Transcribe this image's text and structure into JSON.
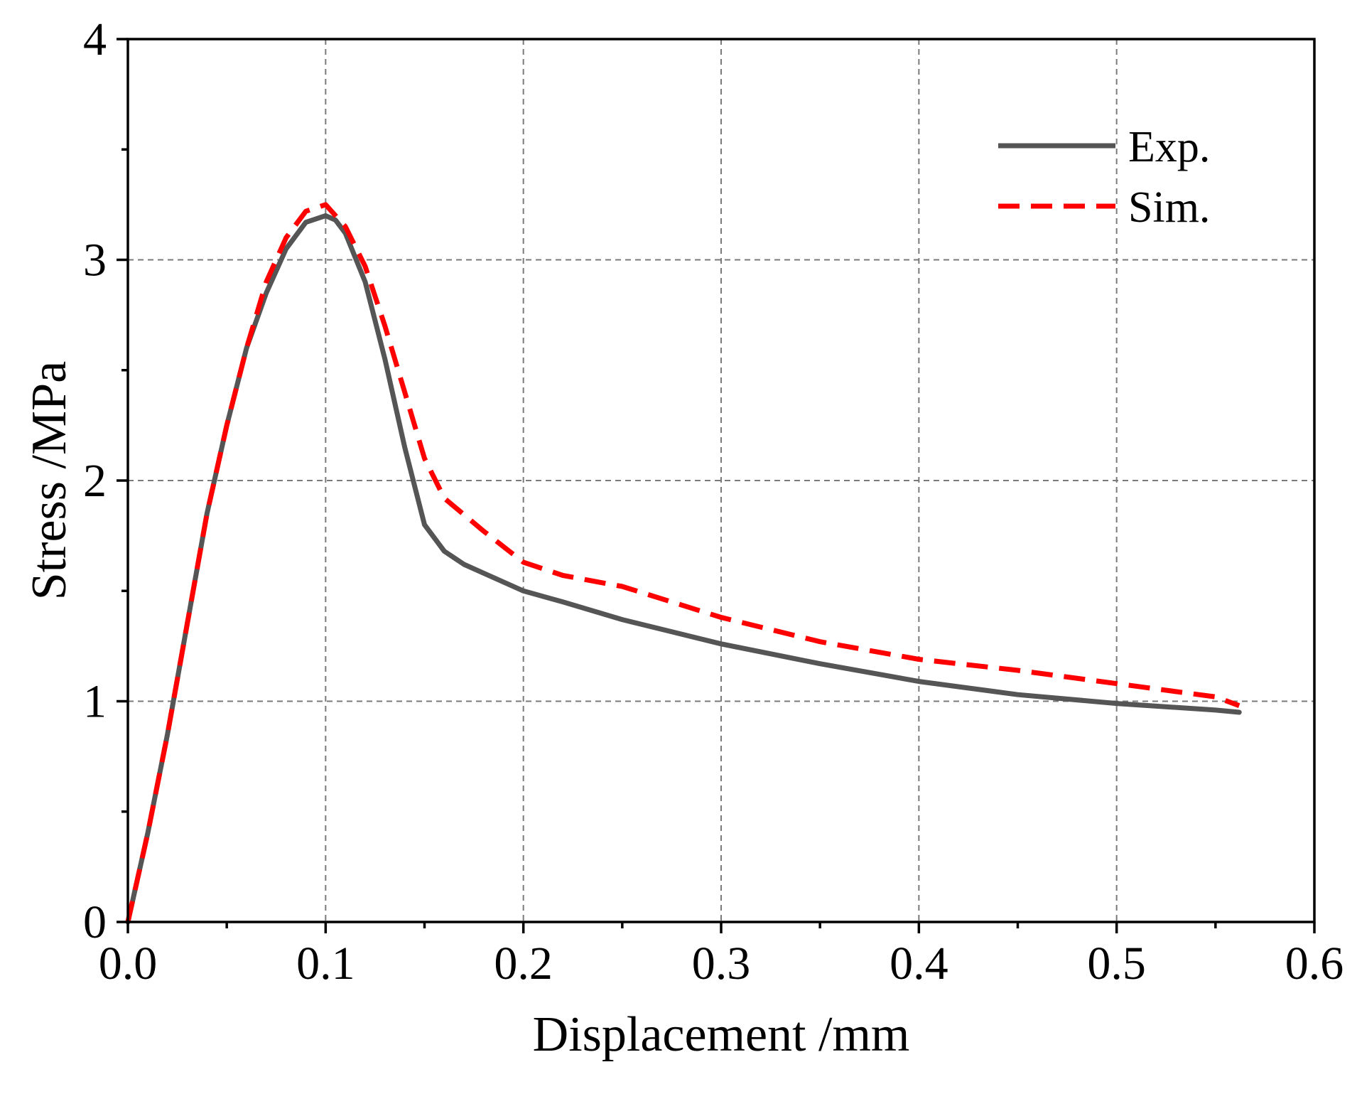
{
  "chart_data": {
    "type": "line",
    "title": "",
    "xlabel": "Displacement /mm",
    "ylabel": "Stress /MPa",
    "xlim": [
      0.0,
      0.6
    ],
    "ylim": [
      0,
      4
    ],
    "x_ticks": [
      "0.0",
      "0.1",
      "0.2",
      "0.3",
      "0.4",
      "0.5",
      "0.6"
    ],
    "y_ticks": [
      "0",
      "1",
      "2",
      "3",
      "4"
    ],
    "x_tick_values": [
      0.0,
      0.1,
      0.2,
      0.3,
      0.4,
      0.5,
      0.6
    ],
    "y_tick_values": [
      0,
      1,
      2,
      3,
      4
    ],
    "x_minor_step": 0.05,
    "y_minor_step": 0.5,
    "grid": true,
    "legend_position": "top-right",
    "series": [
      {
        "name": "Exp.",
        "style": "solid",
        "color": "#555555",
        "x": [
          0,
          0.01,
          0.02,
          0.03,
          0.04,
          0.05,
          0.06,
          0.07,
          0.08,
          0.09,
          0.1,
          0.105,
          0.11,
          0.12,
          0.13,
          0.14,
          0.15,
          0.16,
          0.17,
          0.18,
          0.2,
          0.22,
          0.25,
          0.3,
          0.35,
          0.4,
          0.45,
          0.5,
          0.55,
          0.562
        ],
        "y": [
          0,
          0.4,
          0.85,
          1.35,
          1.85,
          2.25,
          2.6,
          2.85,
          3.05,
          3.17,
          3.2,
          3.18,
          3.12,
          2.9,
          2.55,
          2.15,
          1.8,
          1.68,
          1.62,
          1.58,
          1.5,
          1.45,
          1.37,
          1.26,
          1.17,
          1.09,
          1.03,
          0.99,
          0.96,
          0.95
        ]
      },
      {
        "name": "Sim.",
        "style": "dashed",
        "color": "#ff0000",
        "x": [
          0,
          0.01,
          0.02,
          0.03,
          0.04,
          0.05,
          0.06,
          0.07,
          0.08,
          0.09,
          0.1,
          0.11,
          0.12,
          0.13,
          0.14,
          0.15,
          0.16,
          0.18,
          0.2,
          0.22,
          0.25,
          0.3,
          0.35,
          0.4,
          0.45,
          0.5,
          0.55,
          0.562
        ],
        "y": [
          0,
          0.4,
          0.85,
          1.35,
          1.85,
          2.25,
          2.6,
          2.9,
          3.1,
          3.22,
          3.25,
          3.15,
          2.97,
          2.7,
          2.4,
          2.1,
          1.92,
          1.77,
          1.63,
          1.57,
          1.52,
          1.38,
          1.27,
          1.19,
          1.14,
          1.08,
          1.02,
          0.98
        ]
      }
    ]
  }
}
